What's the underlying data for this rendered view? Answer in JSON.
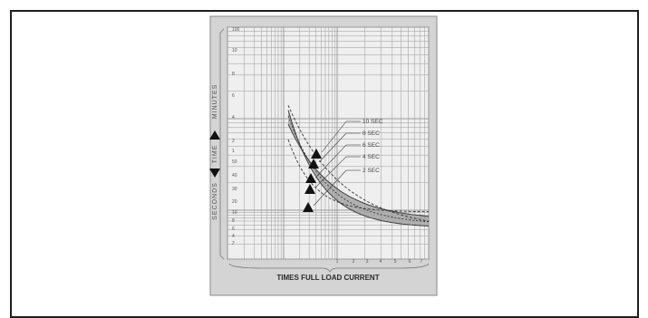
{
  "chart_data": {
    "type": "line",
    "title": "",
    "xlabel": "TIMES FULL LOAD CURRENT",
    "ylabel_top": "MINUTES",
    "ylabel_mid": "TIME",
    "ylabel_bottom": "SECONDS",
    "x_scale": "log",
    "y_scale": "log",
    "grid": true,
    "y_ticks_minutes": [
      "100",
      "10",
      "8",
      "6",
      "4",
      "2"
    ],
    "y_ticks_seconds": [
      "1",
      "50",
      "40",
      "30",
      "20",
      "10",
      "8",
      "6",
      "4",
      "2"
    ],
    "x_ticks": [
      "1",
      "2",
      "3",
      "4",
      "5",
      "6",
      "7"
    ],
    "curves": [
      {
        "label": "10 SEC",
        "x": [
          1.1,
          1.5,
          2,
          3,
          4,
          5,
          6,
          7
        ]
      },
      {
        "label": "8 SEC",
        "x": [
          1.1,
          1.5,
          2,
          3,
          4,
          5,
          6,
          7
        ]
      },
      {
        "label": "6 SEC",
        "x": [
          1.1,
          1.5,
          2,
          3,
          4,
          5,
          6,
          7
        ]
      },
      {
        "label": "4 SEC",
        "x": [
          1.1,
          1.5,
          2,
          3,
          4,
          5,
          6,
          7
        ]
      },
      {
        "label": "2 SEC",
        "x": [
          1.1,
          1.5,
          2,
          3,
          4,
          5,
          6,
          7
        ]
      }
    ],
    "colors": {
      "panel": "#d4d4d4",
      "plot": "#efefef",
      "grid": "#9a9a9a",
      "band": "#9c9c9c",
      "curve": "#333333",
      "arrow": "#111111"
    }
  }
}
